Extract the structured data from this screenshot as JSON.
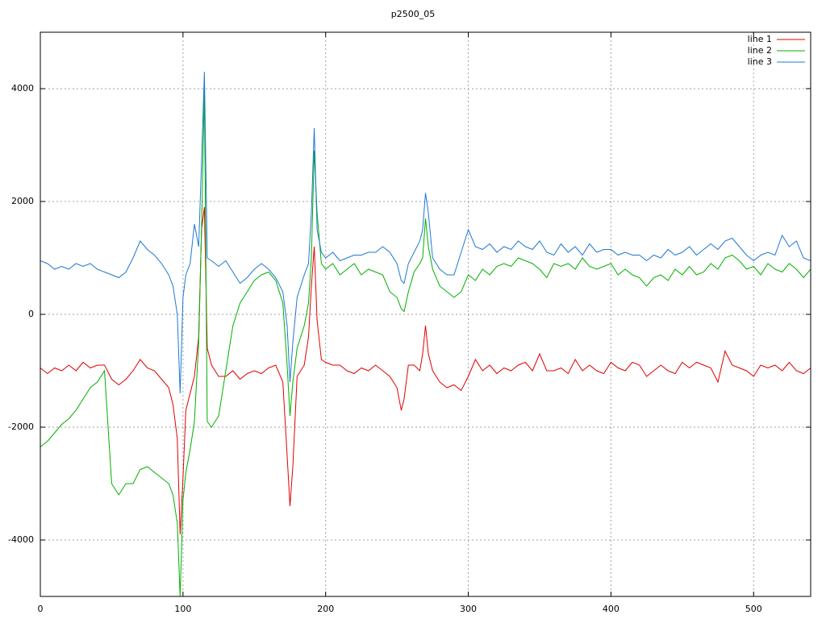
{
  "chart_data": {
    "type": "line",
    "title": "p2500_05",
    "x": [
      0,
      5,
      10,
      15,
      20,
      25,
      30,
      35,
      40,
      45,
      50,
      55,
      60,
      65,
      70,
      75,
      80,
      85,
      90,
      93,
      96,
      98,
      100,
      102,
      105,
      108,
      111,
      113,
      115,
      117,
      120,
      125,
      130,
      135,
      140,
      145,
      150,
      155,
      160,
      165,
      170,
      173,
      175,
      177,
      180,
      185,
      188,
      190,
      192,
      194,
      197,
      200,
      205,
      210,
      215,
      220,
      225,
      230,
      235,
      240,
      245,
      250,
      253,
      255,
      258,
      262,
      266,
      268,
      270,
      272,
      275,
      280,
      285,
      290,
      295,
      300,
      305,
      310,
      315,
      320,
      325,
      330,
      335,
      340,
      345,
      350,
      355,
      360,
      365,
      370,
      375,
      380,
      385,
      390,
      395,
      400,
      405,
      410,
      415,
      420,
      425,
      430,
      435,
      440,
      445,
      450,
      455,
      460,
      465,
      470,
      475,
      480,
      485,
      490,
      495,
      500,
      505,
      510,
      515,
      520,
      525,
      530,
      535,
      540
    ],
    "series": [
      {
        "name": "line 1",
        "color": "#e00000",
        "values": [
          -950,
          -1050,
          -950,
          -1000,
          -900,
          -1000,
          -850,
          -950,
          -900,
          -900,
          -1150,
          -1250,
          -1150,
          -1000,
          -800,
          -950,
          -1000,
          -1150,
          -1300,
          -1600,
          -2200,
          -3900,
          -2900,
          -1700,
          -1400,
          -1100,
          -400,
          1500,
          1900,
          -600,
          -900,
          -1100,
          -1100,
          -1000,
          -1150,
          -1050,
          -1000,
          -1050,
          -950,
          -900,
          -1200,
          -2500,
          -3400,
          -2700,
          -1100,
          -900,
          -400,
          500,
          1200,
          -100,
          -800,
          -850,
          -900,
          -900,
          -1000,
          -1050,
          -950,
          -1000,
          -900,
          -1000,
          -1100,
          -1300,
          -1700,
          -1500,
          -900,
          -900,
          -1000,
          -700,
          -200,
          -700,
          -1000,
          -1200,
          -1300,
          -1250,
          -1350,
          -1100,
          -800,
          -1000,
          -900,
          -1050,
          -950,
          -1000,
          -900,
          -850,
          -1000,
          -700,
          -1000,
          -1000,
          -950,
          -1050,
          -800,
          -1000,
          -900,
          -1000,
          -1050,
          -850,
          -950,
          -1000,
          -850,
          -900,
          -1100,
          -1000,
          -900,
          -1000,
          -1050,
          -850,
          -950,
          -850,
          -900,
          -950,
          -1200,
          -650,
          -900,
          -950,
          -1000,
          -1100,
          -900,
          -950,
          -900,
          -1000,
          -850,
          -1000,
          -1050,
          -950
        ]
      },
      {
        "name": "line 2",
        "color": "#00b000",
        "values": [
          -2350,
          -2250,
          -2100,
          -1950,
          -1850,
          -1700,
          -1500,
          -1300,
          -1200,
          -1000,
          -3000,
          -3200,
          -3000,
          -3000,
          -2750,
          -2700,
          -2800,
          -2900,
          -3000,
          -3200,
          -3700,
          -5000,
          -3300,
          -2800,
          -2400,
          -1900,
          -500,
          1500,
          4000,
          -1900,
          -2000,
          -1800,
          -1000,
          -200,
          200,
          400,
          600,
          700,
          750,
          600,
          200,
          -900,
          -1800,
          -1200,
          -600,
          -200,
          200,
          1000,
          2900,
          1800,
          900,
          800,
          900,
          700,
          800,
          900,
          700,
          800,
          750,
          700,
          400,
          300,
          100,
          50,
          400,
          750,
          900,
          1000,
          1700,
          1200,
          800,
          500,
          400,
          300,
          400,
          700,
          600,
          800,
          700,
          850,
          900,
          850,
          1000,
          950,
          900,
          800,
          650,
          900,
          850,
          900,
          800,
          1000,
          850,
          800,
          850,
          900,
          700,
          800,
          700,
          650,
          500,
          650,
          700,
          600,
          800,
          700,
          850,
          700,
          750,
          900,
          800,
          1000,
          1050,
          950,
          800,
          850,
          700,
          900,
          800,
          750,
          900,
          800,
          650,
          800
        ]
      },
      {
        "name": "line 3",
        "color": "#1e78d2",
        "values": [
          950,
          900,
          800,
          850,
          800,
          900,
          850,
          900,
          800,
          750,
          700,
          650,
          750,
          1000,
          1300,
          1150,
          1050,
          900,
          700,
          500,
          0,
          -1400,
          300,
          700,
          900,
          1600,
          1200,
          2700,
          4300,
          1000,
          950,
          850,
          950,
          750,
          550,
          650,
          800,
          900,
          800,
          650,
          400,
          -200,
          -1200,
          -500,
          300,
          700,
          900,
          1800,
          3300,
          1500,
          1100,
          1000,
          1100,
          950,
          1000,
          1050,
          1050,
          1100,
          1100,
          1200,
          1100,
          900,
          600,
          550,
          900,
          1100,
          1300,
          1500,
          2150,
          1800,
          1000,
          800,
          700,
          700,
          1100,
          1500,
          1200,
          1150,
          1250,
          1100,
          1200,
          1150,
          1300,
          1200,
          1150,
          1300,
          1100,
          1050,
          1250,
          1100,
          1200,
          1050,
          1250,
          1100,
          1150,
          1150,
          1050,
          1100,
          1050,
          1050,
          950,
          1050,
          1000,
          1150,
          1050,
          1100,
          1200,
          1050,
          1150,
          1250,
          1150,
          1300,
          1350,
          1200,
          1050,
          950,
          1050,
          1100,
          1050,
          1400,
          1200,
          1300,
          1000,
          950
        ]
      }
    ],
    "xlim": [
      0,
      540
    ],
    "xticks": [
      0,
      100,
      200,
      300,
      400,
      500
    ],
    "ylim": [
      -5000,
      5000
    ],
    "yticks": [
      -4000,
      -2000,
      0,
      2000,
      4000
    ],
    "grid": true,
    "legend": "top-right"
  }
}
